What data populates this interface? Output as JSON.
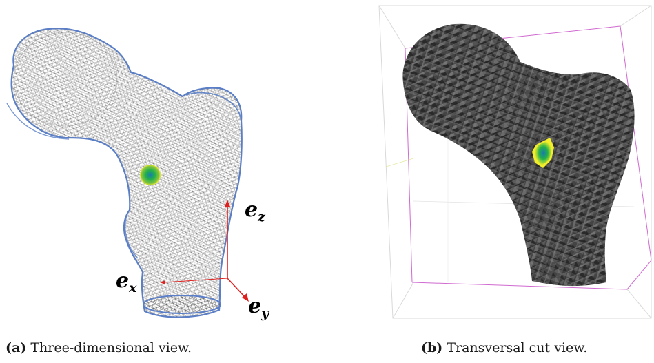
{
  "figure": {
    "panel_a": {
      "caption_tag": "(a)",
      "caption_text": "Three-dimensional view.",
      "axis_labels": {
        "ez": "e",
        "ez_sub": "z",
        "ex": "e",
        "ex_sub": "x",
        "ey": "e",
        "ey_sub": "y"
      },
      "axis_color": "#e0201e",
      "mesh_edge_color": "#5a7fc8",
      "lesion_colors": [
        "#f2ee2a",
        "#22b04a",
        "#1a7ab0"
      ]
    },
    "panel_b": {
      "caption_tag": "(b)",
      "caption_text": "Transversal cut view.",
      "box_colors": [
        "#d9d9d9",
        "#d06ad0"
      ],
      "surface_color": "#3c3c3c",
      "lesion_colors": [
        "#f2ee2a",
        "#22b04a",
        "#1a7ab0"
      ]
    }
  }
}
